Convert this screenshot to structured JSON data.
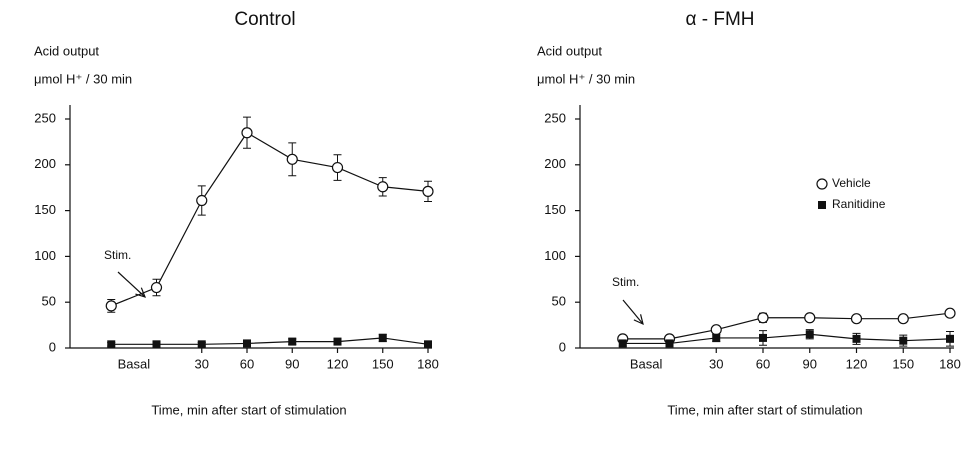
{
  "chart_data": [
    {
      "type": "line",
      "title": "Control",
      "y_label": [
        "Acid output",
        "μmol H⁺ / 30 min"
      ],
      "x_label": "Time, min after start of stimulation",
      "x_annotation": "Basal",
      "annotation": "Stim.",
      "x": [
        -30,
        0,
        30,
        60,
        90,
        120,
        150,
        180
      ],
      "xlim": [
        -60,
        180
      ],
      "xticks": [
        30,
        60,
        90,
        120,
        150,
        180
      ],
      "ylim": [
        0,
        250
      ],
      "yticks": [
        0,
        50,
        100,
        150,
        200,
        250
      ],
      "legend": false,
      "series": [
        {
          "color": "#111111",
          "marker": "circle",
          "values": [
            46,
            66,
            161,
            235,
            206,
            197,
            176,
            171
          ],
          "errors": [
            7,
            9,
            16,
            17,
            18,
            14,
            10,
            11
          ]
        },
        {
          "color": "#111111",
          "marker": "square",
          "values": [
            4,
            4,
            4,
            5,
            7,
            7,
            11,
            4
          ],
          "errors": [
            2,
            2,
            2,
            2,
            3,
            3,
            4,
            2
          ]
        }
      ]
    },
    {
      "type": "line",
      "title": "α - FMH",
      "y_label": [
        "Acid output",
        "μmol H⁺ / 30 min"
      ],
      "x_label": "Time, min after start of stimulation",
      "x_annotation": "Basal",
      "annotation": "Stim.",
      "x": [
        -30,
        0,
        30,
        60,
        90,
        120,
        150,
        180
      ],
      "xlim": [
        -60,
        180
      ],
      "xticks": [
        30,
        60,
        90,
        120,
        150,
        180
      ],
      "ylim": [
        0,
        250
      ],
      "yticks": [
        0,
        50,
        100,
        150,
        200,
        250
      ],
      "legend": true,
      "series": [
        {
          "name": "Vehicle",
          "color": "#111111",
          "marker": "circle",
          "values": [
            10,
            10,
            20,
            33,
            33,
            32,
            32,
            38
          ],
          "errors": [
            2,
            2,
            3,
            5,
            3,
            3,
            3,
            3
          ]
        },
        {
          "name": "Ranitidine",
          "color": "#111111",
          "marker": "square",
          "values": [
            5,
            5,
            11,
            11,
            15,
            10,
            8,
            10
          ],
          "errors": [
            3,
            3,
            4,
            8,
            5,
            6,
            6,
            8
          ]
        }
      ]
    }
  ]
}
